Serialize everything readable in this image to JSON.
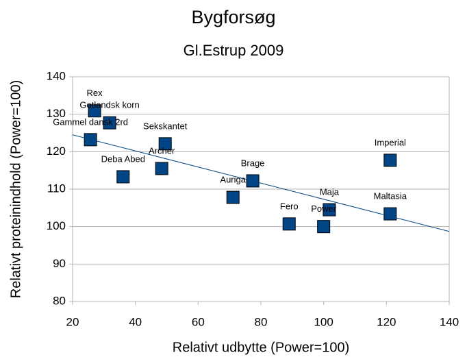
{
  "chart_data": {
    "type": "scatter",
    "title": "Bygforsøg",
    "subtitle": "Gl.Estrup 2009",
    "x_label": "Relativt udbytte (Power=100)",
    "y_label": "Relativt proteinindhold (Power=100)",
    "series": [
      {
        "color": "#004586",
        "labels": [
          "Rex",
          "Gotlandsk korn",
          "Gammel dansk 2rd",
          "Sekskantet",
          "Deba Abed",
          "Archer",
          "Auriga",
          "Brage",
          "Fero",
          "Power",
          "Maja",
          "Imperial",
          "Maltasia"
        ],
        "x": [
          27,
          31.8,
          25.7,
          49.5,
          36.1,
          48.4,
          71.1,
          77.4,
          89,
          100,
          101.8,
          121.2,
          121.2
        ],
        "y": [
          130.9,
          127.7,
          123.2,
          122.1,
          113.3,
          115.5,
          107.8,
          112.2,
          100.7,
          100,
          104.5,
          117.7,
          103.4
        ]
      }
    ],
    "trendline": {
      "color": "#004586",
      "x": [
        20,
        140
      ],
      "y": [
        124.5,
        98.7
      ]
    },
    "xlim": [
      20,
      140
    ],
    "xticks": [
      20,
      40,
      60,
      80,
      100,
      120,
      140
    ],
    "ylim": [
      80,
      140
    ],
    "yticks": [
      80,
      90,
      100,
      110,
      120,
      130,
      140
    ],
    "grid": true
  }
}
